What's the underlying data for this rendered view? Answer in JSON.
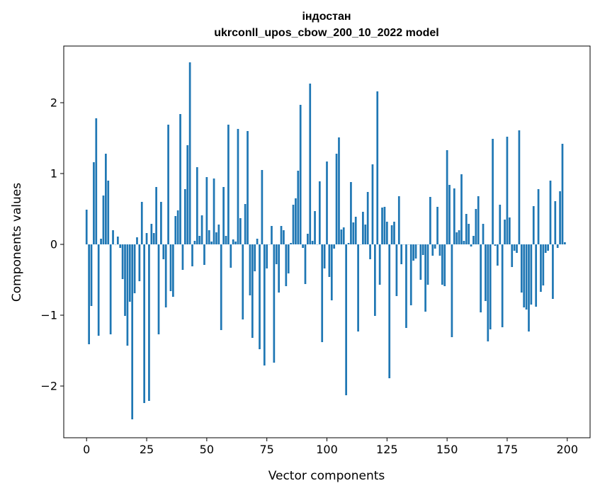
{
  "chart_data": {
    "type": "bar",
    "title": "індостан",
    "subtitle": "ukrconll_upos_cbow_200_10_2022 model",
    "xlabel": "Vector components",
    "ylabel": "Components values",
    "xlim": [
      -9.5,
      209.5
    ],
    "ylim": [
      -2.73,
      2.8
    ],
    "xticks": [
      0,
      25,
      50,
      75,
      100,
      125,
      150,
      175,
      200
    ],
    "yticks": [
      -2,
      -1,
      0,
      1,
      2
    ],
    "xtick_labels": [
      "0",
      "25",
      "50",
      "75",
      "100",
      "125",
      "150",
      "175",
      "200"
    ],
    "ytick_labels": [
      "−2",
      "−1",
      "0",
      "1",
      "2"
    ],
    "grid": false,
    "legend": "none",
    "bar_color": "#1f77b4",
    "values": [
      0.49,
      -1.41,
      -0.87,
      1.16,
      1.78,
      -1.29,
      0.08,
      0.69,
      1.28,
      0.9,
      -1.27,
      0.2,
      0.0,
      0.11,
      -0.05,
      -0.49,
      -1.01,
      -1.43,
      -0.81,
      -2.47,
      -0.69,
      0.1,
      -0.52,
      0.6,
      -2.24,
      0.16,
      -2.21,
      0.29,
      0.16,
      0.81,
      -1.27,
      0.6,
      -0.21,
      -0.89,
      1.69,
      -0.66,
      -0.74,
      0.4,
      0.48,
      1.84,
      -0.36,
      0.78,
      1.4,
      2.57,
      -0.31,
      0.05,
      1.09,
      0.12,
      0.41,
      -0.29,
      0.95,
      0.2,
      0.04,
      0.93,
      0.17,
      0.28,
      -1.21,
      0.81,
      0.12,
      1.69,
      -0.33,
      0.07,
      0.04,
      1.63,
      0.37,
      -1.06,
      0.57,
      1.6,
      -0.72,
      -1.32,
      -0.38,
      0.08,
      -1.48,
      1.05,
      -1.71,
      -0.34,
      0.0,
      0.26,
      -1.67,
      -0.28,
      -0.68,
      0.26,
      0.2,
      -0.59,
      -0.41,
      0.02,
      0.56,
      0.65,
      1.04,
      1.97,
      -0.05,
      -0.56,
      0.15,
      2.27,
      0.05,
      0.47,
      0.0,
      0.89,
      -1.38,
      -0.34,
      1.17,
      -0.46,
      -0.79,
      -0.06,
      1.28,
      1.51,
      0.21,
      0.24,
      -2.13,
      0.02,
      0.88,
      0.31,
      0.39,
      -1.23,
      0.0,
      0.46,
      0.28,
      0.74,
      -0.21,
      1.13,
      -1.01,
      2.16,
      -0.57,
      0.52,
      0.53,
      0.32,
      -1.89,
      0.27,
      0.32,
      -0.73,
      0.68,
      -0.28,
      0.0,
      -1.18,
      0.0,
      -0.86,
      -0.23,
      -0.2,
      0.0,
      -0.5,
      -0.15,
      -0.95,
      -0.57,
      0.67,
      -0.16,
      -0.06,
      0.53,
      -0.16,
      -0.57,
      -0.59,
      1.33,
      0.84,
      -1.31,
      0.79,
      0.17,
      0.2,
      0.99,
      0.05,
      0.43,
      0.29,
      -0.03,
      0.12,
      0.5,
      0.68,
      -0.96,
      0.29,
      -0.8,
      -1.37,
      -1.2,
      1.49,
      -0.02,
      -0.3,
      0.56,
      -1.17,
      0.35,
      1.52,
      0.38,
      -0.32,
      -0.09,
      -0.12,
      1.61,
      -0.68,
      -0.89,
      -0.92,
      -1.23,
      -0.85,
      0.54,
      -0.88,
      0.78,
      -0.67,
      -0.58,
      -0.12,
      -0.09,
      0.9,
      -0.77,
      0.61,
      -0.05,
      0.75,
      1.42,
      0.03
    ]
  }
}
